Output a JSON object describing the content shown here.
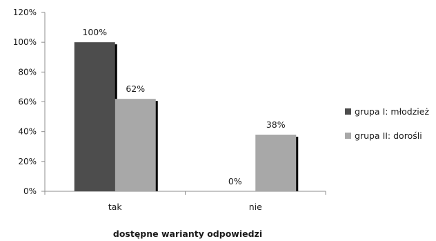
{
  "chart_data": {
    "type": "bar",
    "categories": [
      "tak",
      "nie"
    ],
    "series": [
      {
        "name": "grupa I: młodzież",
        "values": [
          100,
          0
        ],
        "labels": [
          "100%",
          "0%"
        ],
        "color": "#4d4d4d"
      },
      {
        "name": "grupa II: dorośli",
        "values": [
          62,
          38
        ],
        "labels": [
          "62%",
          "38%"
        ],
        "color": "#a8a8a8"
      }
    ],
    "xlabel": "dostępne warianty odpowiedzi",
    "ylabel": "",
    "ylim": [
      0,
      120
    ],
    "yticks": [
      0,
      20,
      40,
      60,
      80,
      100,
      120
    ],
    "ytick_labels": [
      "0%",
      "20%",
      "40%",
      "60%",
      "80%",
      "100%",
      "120%"
    ],
    "grid": false,
    "legend_position": "right"
  }
}
